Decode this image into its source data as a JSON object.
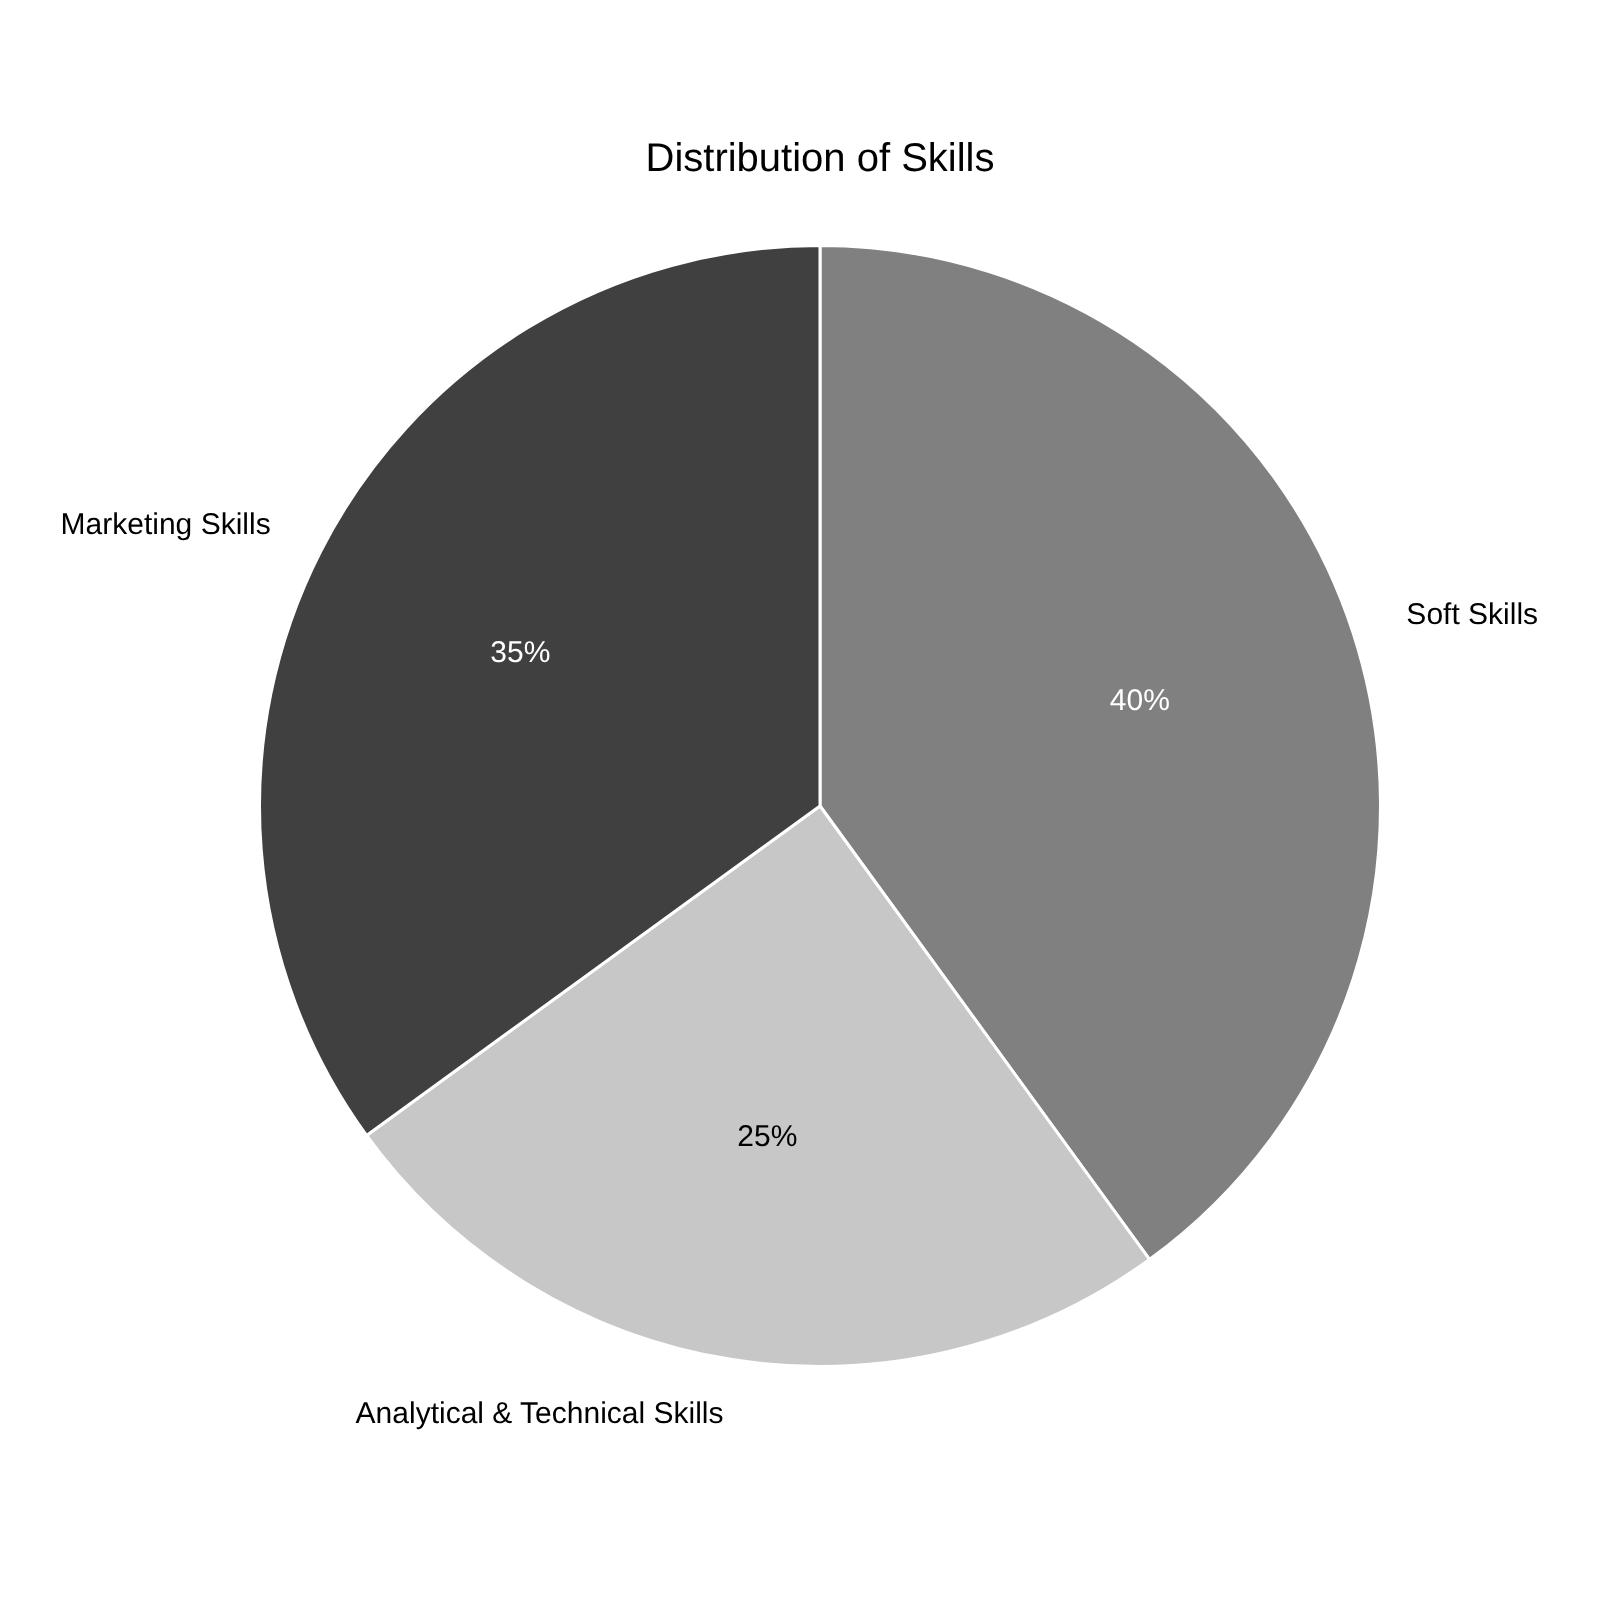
{
  "chart_data": {
    "type": "pie",
    "title": "Distribution of Skills",
    "categories": [
      "Soft Skills",
      "Analytical & Technical Skills",
      "Marketing Skills"
    ],
    "values": [
      40,
      25,
      35
    ],
    "colors": [
      "#808080",
      "#c6c7c6",
      "#404040"
    ],
    "value_labels": [
      "40%",
      "25%",
      "35%"
    ]
  }
}
